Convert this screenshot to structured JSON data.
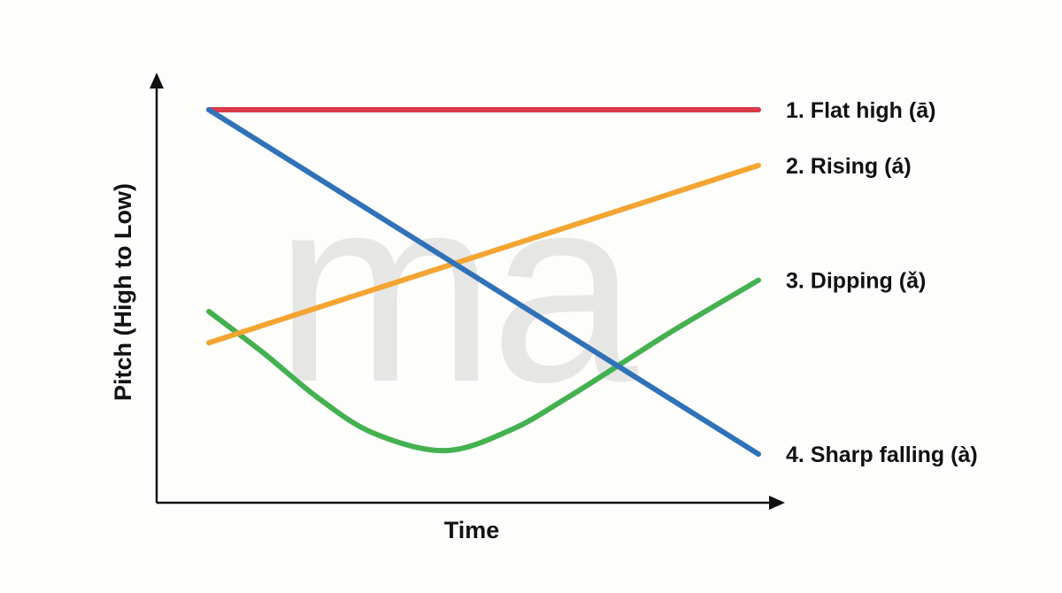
{
  "chart_data": {
    "type": "line",
    "xlabel": "Time",
    "ylabel": "Pitch (High to Low)",
    "watermark_text": "ma",
    "xlim": [
      0,
      1
    ],
    "ylim": [
      0,
      1
    ],
    "grid": false,
    "legend_placement": "right",
    "series": [
      {
        "name": "1. Flat high (ā)",
        "color": "#d93a49",
        "points": [
          [
            0,
            1.0
          ],
          [
            1,
            1.0
          ]
        ]
      },
      {
        "name": "2. Rising (á)",
        "color": "#f4a431",
        "points": [
          [
            0,
            0.33
          ],
          [
            1,
            0.84
          ]
        ]
      },
      {
        "name": "3. Dipping (ǎ)",
        "color": "#43b14f",
        "points": [
          [
            0,
            0.42
          ],
          [
            0.1,
            0.3
          ],
          [
            0.2,
            0.17
          ],
          [
            0.3,
            0.07
          ],
          [
            0.43,
            0.02
          ],
          [
            0.55,
            0.08
          ],
          [
            0.65,
            0.17
          ],
          [
            0.75,
            0.27
          ],
          [
            0.85,
            0.37
          ],
          [
            1,
            0.51
          ]
        ]
      },
      {
        "name": "4. Sharp falling (à)",
        "color": "#2f72b8",
        "points": [
          [
            0,
            1.0
          ],
          [
            1,
            0.01
          ]
        ]
      }
    ]
  }
}
